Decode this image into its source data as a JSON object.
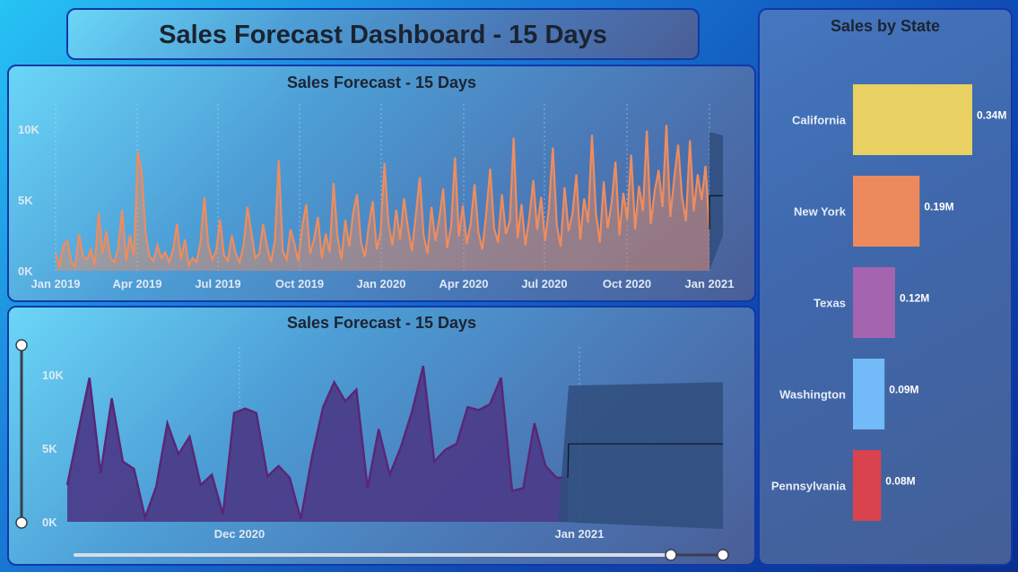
{
  "dashboard_title": "Sales Forecast Dashboard - 15 Days",
  "chart_data": [
    {
      "type": "area",
      "title": "Sales Forecast - 15 Days",
      "x_tick_labels": [
        "Jan 2019",
        "Apr 2019",
        "Jul 2019",
        "Oct 2019",
        "Jan 2020",
        "Apr 2020",
        "Jul 2020",
        "Oct 2020",
        "Jan 2021"
      ],
      "y_tick_labels": [
        "0K",
        "5K",
        "10K"
      ],
      "ylim": [
        0,
        10000
      ],
      "series": [
        {
          "color": "#ef8c5e",
          "values": [
            1200,
            400,
            1800,
            2100,
            600,
            300,
            2600,
            1000,
            800,
            1500,
            400,
            4100,
            1200,
            2800,
            900,
            600,
            1600,
            4300,
            700,
            2500,
            1100,
            8400,
            6900,
            2600,
            1000,
            700,
            1800,
            900,
            1300,
            600,
            1500,
            3300,
            800,
            2200,
            400,
            900,
            600,
            2000,
            5200,
            1800,
            800,
            1400,
            3600,
            1100,
            700,
            2500,
            1200,
            600,
            1800,
            4500,
            2700,
            900,
            1200,
            3300,
            1700,
            600,
            2100,
            7800,
            1400,
            800,
            2900,
            1900,
            700,
            3100,
            4700,
            1200,
            2200,
            3800,
            900,
            2600,
            1300,
            6200,
            2400,
            800,
            3600,
            1700,
            4100,
            5400,
            2000,
            1000,
            3200,
            4900,
            1500,
            2700,
            7600,
            3400,
            1800,
            4300,
            2200,
            5100,
            3000,
            1400,
            3900,
            6600,
            2500,
            1200,
            4500,
            2100,
            3700,
            5800,
            1600,
            3100,
            8000,
            2400,
            4600,
            1900,
            3300,
            6100,
            2700,
            1500,
            4100,
            7200,
            3000,
            2000,
            5400,
            2600,
            3500,
            9400,
            2300,
            4700,
            1800,
            3800,
            6400,
            2900,
            5200,
            2100,
            4400,
            8700,
            3200,
            1700,
            5900,
            2800,
            4000,
            6800,
            2200,
            5100,
            3400,
            9600,
            4100,
            2000,
            6300,
            3000,
            4800,
            7700,
            2500,
            5500,
            3600,
            8200,
            2900,
            6000,
            4200,
            9900,
            3300,
            5600,
            7100,
            4500,
            10300,
            3800,
            6500,
            8900,
            5200,
            3500,
            9200,
            4200,
            6800,
            5000,
            7400,
            2900
          ],
          "forecast_band": [
            2500,
            9800
          ],
          "forecast_value": 5300
        }
      ]
    },
    {
      "type": "area",
      "title": "Sales Forecast - 15 Days",
      "x_tick_labels": [
        "Dec 2020",
        "Jan 2021"
      ],
      "y_tick_labels": [
        "0K",
        "5K",
        "10K"
      ],
      "ylim": [
        0,
        10000
      ],
      "series": [
        {
          "color": "#5a2675",
          "values": [
            2500,
            6200,
            9800,
            3300,
            8400,
            4100,
            3600,
            300,
            2400,
            6700,
            4600,
            5800,
            2500,
            3200,
            500,
            7400,
            7700,
            7400,
            3100,
            3800,
            3000,
            200,
            4400,
            7800,
            9500,
            8200,
            9000,
            2300,
            6300,
            3200,
            5100,
            7500,
            10600,
            4100,
            4900,
            5300,
            7800,
            7600,
            8000,
            9800,
            2100,
            2300,
            6700,
            3800,
            3000,
            3000
          ],
          "forecast_band": [
            0,
            9500
          ],
          "forecast_value": 5300
        }
      ]
    },
    {
      "type": "bar",
      "title": "Sales by State",
      "categories": [
        "California",
        "New York",
        "Texas",
        "Washington",
        "Pennsylvania"
      ],
      "values": [
        0.34,
        0.19,
        0.12,
        0.09,
        0.08
      ],
      "value_labels": [
        "0.34M",
        "0.19M",
        "0.12M",
        "0.09M",
        "0.08M"
      ],
      "colors": [
        "#e8d062",
        "#ec8a5d",
        "#a564af",
        "#72baf8",
        "#d8434e"
      ]
    }
  ]
}
